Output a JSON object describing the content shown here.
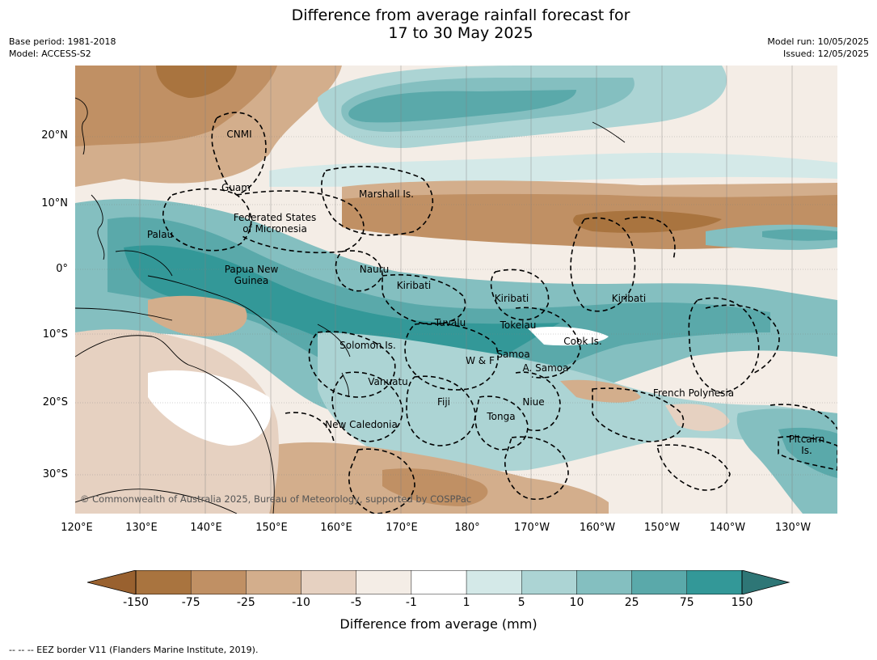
{
  "header": {
    "title_line1": "Difference from average rainfall forecast for",
    "title_line2": "17 to 30 May 2025",
    "base_period": "Base period: 1981-2018",
    "model": "Model: ACCESS-S2",
    "model_run": "Model run: 10/05/2025",
    "issued": "Issued: 12/05/2025"
  },
  "map": {
    "lat_labels": [
      "20°N",
      "10°N",
      "0°",
      "10°S",
      "20°S",
      "30°S"
    ],
    "lon_labels": [
      "120°E",
      "130°E",
      "140°E",
      "150°E",
      "160°E",
      "170°E",
      "180°",
      "170°W",
      "160°W",
      "150°W",
      "140°W",
      "130°W"
    ],
    "regions": [
      "CNMI",
      "Guam",
      "Marshall Is.",
      "Federated States\nof Micronesia",
      "Palau",
      "Nauru",
      "Papua New\nGuinea",
      "Kiribati",
      "Kiribati",
      "Kiribati",
      "Tuvalu",
      "Tokelau",
      "Cook Is.",
      "Solomon Is.",
      "Samoa",
      "W & F",
      "A. Samoa",
      "Vanuatu",
      "Fiji",
      "Niue",
      "French Polynesia",
      "Tonga",
      "New Caledonia",
      "Pitcairn\nIs."
    ],
    "copyright": "© Commonwealth of Australia 2025, Bureau of Meteorology, supported by COSPPac",
    "colors": {
      "land_line": "#000000",
      "dry_extreme": "#a6682f",
      "wet_extreme": "#2e7b7b"
    }
  },
  "legend": {
    "label": "Difference from average (mm)",
    "ticks": [
      "-150",
      "-75",
      "-25",
      "-10",
      "-5",
      "-1",
      "1",
      "5",
      "10",
      "25",
      "75",
      "150"
    ],
    "colors": [
      "#a9743f",
      "#c09064",
      "#d3ae8c",
      "#e6d1c1",
      "#f4ede6",
      "#ffffff",
      "#d4e9e8",
      "#acd4d4",
      "#84bfc0",
      "#5aa9aa",
      "#339898"
    ],
    "under_color": "#99612f",
    "over_color": "#2e7676"
  },
  "footer": {
    "eez_note": "--  --  -- EEZ border V11 (Flanders Marine Institute, 2019)."
  }
}
